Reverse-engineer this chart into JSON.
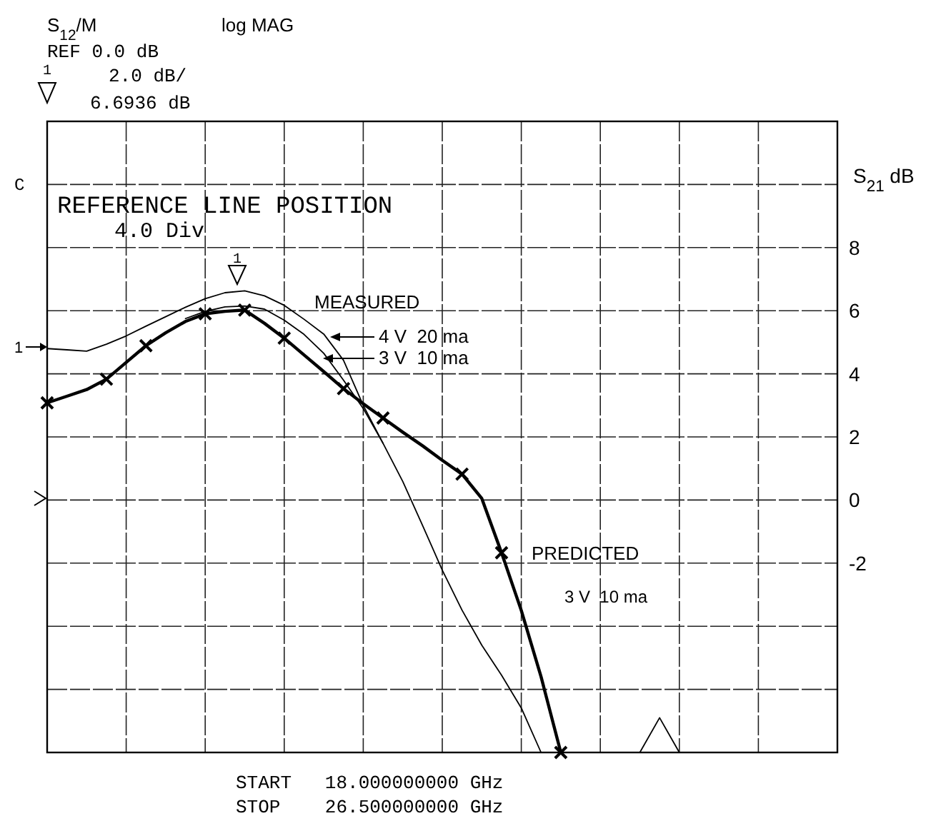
{
  "chart_data": {
    "type": "line",
    "ylabel": "S$_{21}$ dB",
    "categories": [
      null,
      null,
      null,
      null,
      null,
      null,
      null,
      null,
      null,
      null,
      null,
      null,
      null,
      null,
      null,
      null,
      null,
      null,
      null,
      null,
      null,
      null,
      null,
      null,
      null,
      null,
      null,
      null,
      null,
      null,
      null,
      null,
      null,
      null,
      null,
      null,
      null,
      null,
      null,
      null,
      null
    ],
    "ylim": [
      -8,
      12
    ],
    "yticks": [
      {
        "value": -8,
        "label": null
      },
      {
        "value": -6,
        "label": null
      },
      {
        "value": -4,
        "label": null
      },
      -2,
      0,
      2,
      4,
      6,
      8,
      {
        "value": 10,
        "label": null
      },
      {
        "value": 12,
        "label": null
      }
    ],
    "tick_labels": "y",
    "grid": true,
    "legend": "top",
    "series": [
      {
        "name": "4 V  20 ma",
        "color": "#000000",
        "values": [
          4.8,
          4.76,
          4.72,
          4.94,
          5.2,
          5.51,
          5.81,
          6.11,
          6.38,
          6.57,
          6.63,
          6.47,
          6.17,
          5.73,
          5.26,
          4.43,
          3.0,
          1.8,
          0.59,
          -0.8,
          -2.22,
          -3.49,
          -4.6,
          -5.55,
          -6.59,
          -8,
          -8,
          -8,
          -8,
          -8,
          -8,
          -6.9,
          -8,
          -8,
          -8,
          -8,
          -8,
          -8,
          -8,
          -8,
          -8
        ]
      },
      {
        "name": "3 V  10 ma",
        "color": "#000000",
        "values": [
          null,
          null,
          null,
          null,
          null,
          null,
          null,
          5.75,
          5.98,
          6.12,
          6.15,
          6.05,
          5.7,
          5.25,
          4.65,
          3.8,
          2.9,
          1.8,
          null,
          null,
          null,
          null,
          null,
          null,
          null,
          null,
          null,
          null,
          null,
          null,
          null,
          null,
          null,
          null,
          null,
          null,
          null,
          null,
          null,
          null,
          null
        ]
      },
      {
        "name": "PREDICTED",
        "color": "#000000",
        "values": [
          3.08,
          3.29,
          3.5,
          3.83,
          4.36,
          4.89,
          5.3,
          5.66,
          5.9,
          5.98,
          6.02,
          5.6,
          5.13,
          4.6,
          4.07,
          3.53,
          3.05,
          2.6,
          2.15,
          1.72,
          1.26,
          0.82,
          0.05,
          -1.67,
          -3.5,
          -5.6,
          -8,
          null,
          null,
          null,
          null,
          null,
          null,
          null,
          null,
          null,
          null,
          null,
          null,
          null,
          null
        ]
      },
      {
        "type": "scatter",
        "marker": "cross",
        "color": "#000000",
        "values": [
          3.08,
          null,
          null,
          3.83,
          null,
          4.89,
          null,
          null,
          5.9,
          null,
          6.02,
          null,
          5.13,
          null,
          null,
          3.53,
          null,
          2.6,
          null,
          null,
          null,
          0.82,
          null,
          -1.67,
          null,
          null,
          -8,
          null,
          null,
          null,
          null,
          null,
          null,
          null,
          null,
          null,
          null,
          null,
          null,
          null,
          null
        ]
      }
    ],
    "annotations": [
      "S$_{12}$/M",
      "log MAG",
      "REF 0.0 dB",
      "2.0 dB/",
      "1",
      "6.6936 dB",
      "C",
      "REFERENCE LINE POSITION",
      "4.0 Div",
      "1",
      "MEASURED",
      "1",
      "3 V  10 ma",
      "START   18.000000000 GHz",
      "STOP    26.500000000 GHz"
    ]
  }
}
